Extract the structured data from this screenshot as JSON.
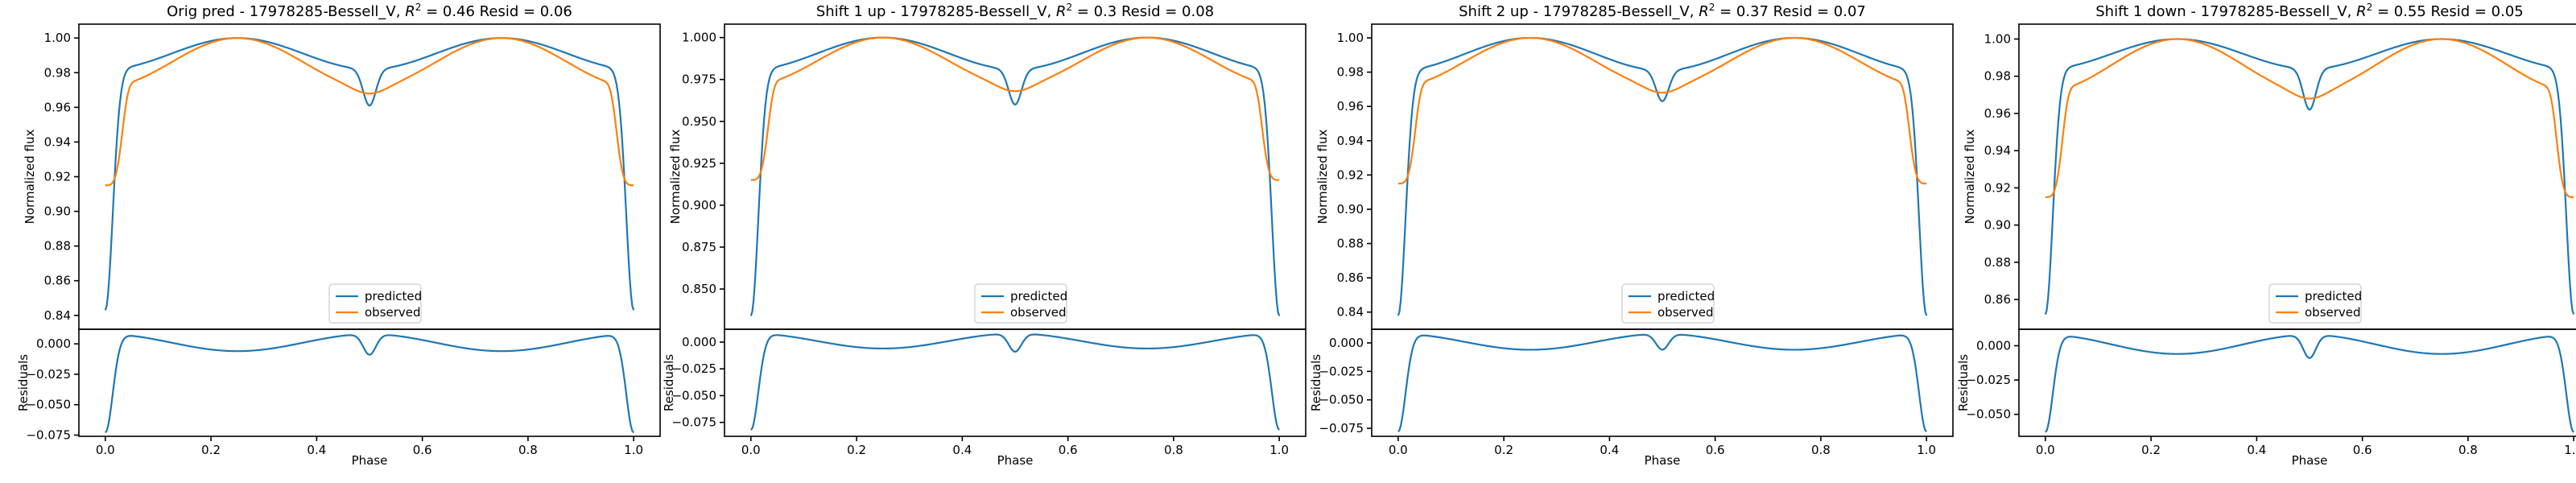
{
  "chart_data": [
    {
      "type": "line",
      "title_prefix": "Orig pred - 17978285-Bessell_V, ",
      "r2": "0.46",
      "resid": "0.06",
      "xlabel": "Phase",
      "ylabel_top": "Normalized flux",
      "ylabel_bottom": "Residuals",
      "xlim": [
        -0.05,
        1.05
      ],
      "x_ticks": [
        0.0,
        0.2,
        0.4,
        0.6,
        0.8,
        1.0
      ],
      "x_tick_labels": [
        "0.0",
        "0.2",
        "0.4",
        "0.6",
        "0.8",
        "1.0"
      ],
      "top_ylim": [
        0.832,
        1.008
      ],
      "top_ticks": [
        0.84,
        0.86,
        0.88,
        0.9,
        0.92,
        0.94,
        0.96,
        0.98,
        1.0
      ],
      "top_tick_labels": [
        "0.84",
        "0.86",
        "0.88",
        "0.90",
        "0.92",
        "0.94",
        "0.96",
        "0.98",
        "1.00"
      ],
      "bottom_ylim": [
        -0.076,
        0.012
      ],
      "bottom_ticks": [
        0.0,
        -0.025,
        -0.05,
        -0.075
      ],
      "bottom_tick_labels": [
        "0.000",
        "−0.025",
        "−0.050",
        "−0.075"
      ],
      "legend": [
        "predicted",
        "observed"
      ],
      "legend_position": "lower center",
      "predicted": {
        "min": 0.843,
        "plateau": 0.982,
        "max": 1.0,
        "dip": 0.961
      },
      "observed": {
        "min": 0.915,
        "plateau": 0.972,
        "max": 1.0,
        "dip": 0.968
      },
      "residual": {
        "min": -0.073,
        "bump": 0.008,
        "mid": -0.007,
        "dip": -0.009
      },
      "series": [
        {
          "name": "predicted",
          "color": "#1f77b4"
        },
        {
          "name": "observed",
          "color": "#ff7f0e"
        }
      ]
    },
    {
      "type": "line",
      "title_prefix": "Shift 1 up - 17978285-Bessell_V, ",
      "r2": "0.3",
      "resid": "0.08",
      "xlabel": "Phase",
      "ylabel_top": "Normalized flux",
      "ylabel_bottom": "Residuals",
      "xlim": [
        -0.05,
        1.05
      ],
      "x_ticks": [
        0.0,
        0.2,
        0.4,
        0.6,
        0.8,
        1.0
      ],
      "x_tick_labels": [
        "0.0",
        "0.2",
        "0.4",
        "0.6",
        "0.8",
        "1.0"
      ],
      "top_ylim": [
        0.826,
        1.008
      ],
      "top_ticks": [
        0.85,
        0.875,
        0.9,
        0.925,
        0.95,
        0.975,
        1.0
      ],
      "top_tick_labels": [
        "0.850",
        "0.875",
        "0.900",
        "0.925",
        "0.950",
        "0.975",
        "1.000"
      ],
      "bottom_ylim": [
        -0.088,
        0.012
      ],
      "bottom_ticks": [
        0.0,
        -0.025,
        -0.05,
        -0.075
      ],
      "bottom_tick_labels": [
        "0.000",
        "−0.025",
        "−0.050",
        "−0.075"
      ],
      "legend": [
        "predicted",
        "observed"
      ],
      "legend_position": "lower center",
      "predicted": {
        "min": 0.834,
        "plateau": 0.981,
        "max": 1.0,
        "dip": 0.96
      },
      "observed": {
        "min": 0.915,
        "plateau": 0.972,
        "max": 1.0,
        "dip": 0.968
      },
      "residual": {
        "min": -0.082,
        "bump": 0.008,
        "mid": -0.007,
        "dip": -0.009
      },
      "series": [
        {
          "name": "predicted",
          "color": "#1f77b4"
        },
        {
          "name": "observed",
          "color": "#ff7f0e"
        }
      ]
    },
    {
      "type": "line",
      "title_prefix": "Shift 2 up - 17978285-Bessell_V, ",
      "r2": "0.37",
      "resid": "0.07",
      "xlabel": "Phase",
      "ylabel_top": "Normalized flux",
      "ylabel_bottom": "Residuals",
      "xlim": [
        -0.05,
        1.05
      ],
      "x_ticks": [
        0.0,
        0.2,
        0.4,
        0.6,
        0.8,
        1.0
      ],
      "x_tick_labels": [
        "0.0",
        "0.2",
        "0.4",
        "0.6",
        "0.8",
        "1.0"
      ],
      "top_ylim": [
        0.83,
        1.008
      ],
      "top_ticks": [
        0.84,
        0.86,
        0.88,
        0.9,
        0.92,
        0.94,
        0.96,
        0.98,
        1.0
      ],
      "top_tick_labels": [
        "0.84",
        "0.86",
        "0.88",
        "0.90",
        "0.92",
        "0.94",
        "0.96",
        "0.98",
        "1.00"
      ],
      "bottom_ylim": [
        -0.082,
        0.012
      ],
      "bottom_ticks": [
        0.0,
        -0.025,
        -0.05,
        -0.075
      ],
      "bottom_tick_labels": [
        "0.000",
        "−0.025",
        "−0.050",
        "−0.075"
      ],
      "legend": [
        "predicted",
        "observed"
      ],
      "legend_position": "lower center",
      "predicted": {
        "min": 0.838,
        "plateau": 0.981,
        "max": 1.0,
        "dip": 0.963
      },
      "observed": {
        "min": 0.915,
        "plateau": 0.972,
        "max": 1.0,
        "dip": 0.968
      },
      "residual": {
        "min": -0.078,
        "bump": 0.008,
        "mid": -0.007,
        "dip": -0.006
      },
      "series": [
        {
          "name": "predicted",
          "color": "#1f77b4"
        },
        {
          "name": "observed",
          "color": "#ff7f0e"
        }
      ]
    },
    {
      "type": "line",
      "title_prefix": "Shift 1 down - 17978285-Bessell_V, ",
      "r2": "0.55",
      "resid": "0.05",
      "xlabel": "Phase",
      "ylabel_top": "Normalized flux",
      "ylabel_bottom": "Residuals",
      "xlim": [
        -0.05,
        1.05
      ],
      "x_ticks": [
        0.0,
        0.2,
        0.4,
        0.6,
        0.8,
        1.0
      ],
      "x_tick_labels": [
        "0.0",
        "0.2",
        "0.4",
        "0.6",
        "0.8",
        "1.0"
      ],
      "top_ylim": [
        0.844,
        1.008
      ],
      "top_ticks": [
        0.86,
        0.88,
        0.9,
        0.92,
        0.94,
        0.96,
        0.98,
        1.0
      ],
      "top_tick_labels": [
        "0.86",
        "0.88",
        "0.90",
        "0.92",
        "0.94",
        "0.96",
        "0.98",
        "1.00"
      ],
      "bottom_ylim": [
        -0.066,
        0.012
      ],
      "bottom_ticks": [
        0.0,
        -0.025,
        -0.05
      ],
      "bottom_tick_labels": [
        "0.000",
        "−0.025",
        "−0.050"
      ],
      "legend": [
        "predicted",
        "observed"
      ],
      "legend_position": "lower center",
      "predicted": {
        "min": 0.852,
        "plateau": 0.984,
        "max": 1.0,
        "dip": 0.962
      },
      "observed": {
        "min": 0.915,
        "plateau": 0.972,
        "max": 1.0,
        "dip": 0.968
      },
      "residual": {
        "min": -0.063,
        "bump": 0.008,
        "mid": -0.007,
        "dip": -0.009
      },
      "series": [
        {
          "name": "predicted",
          "color": "#1f77b4"
        },
        {
          "name": "observed",
          "color": "#ff7f0e"
        }
      ]
    }
  ]
}
